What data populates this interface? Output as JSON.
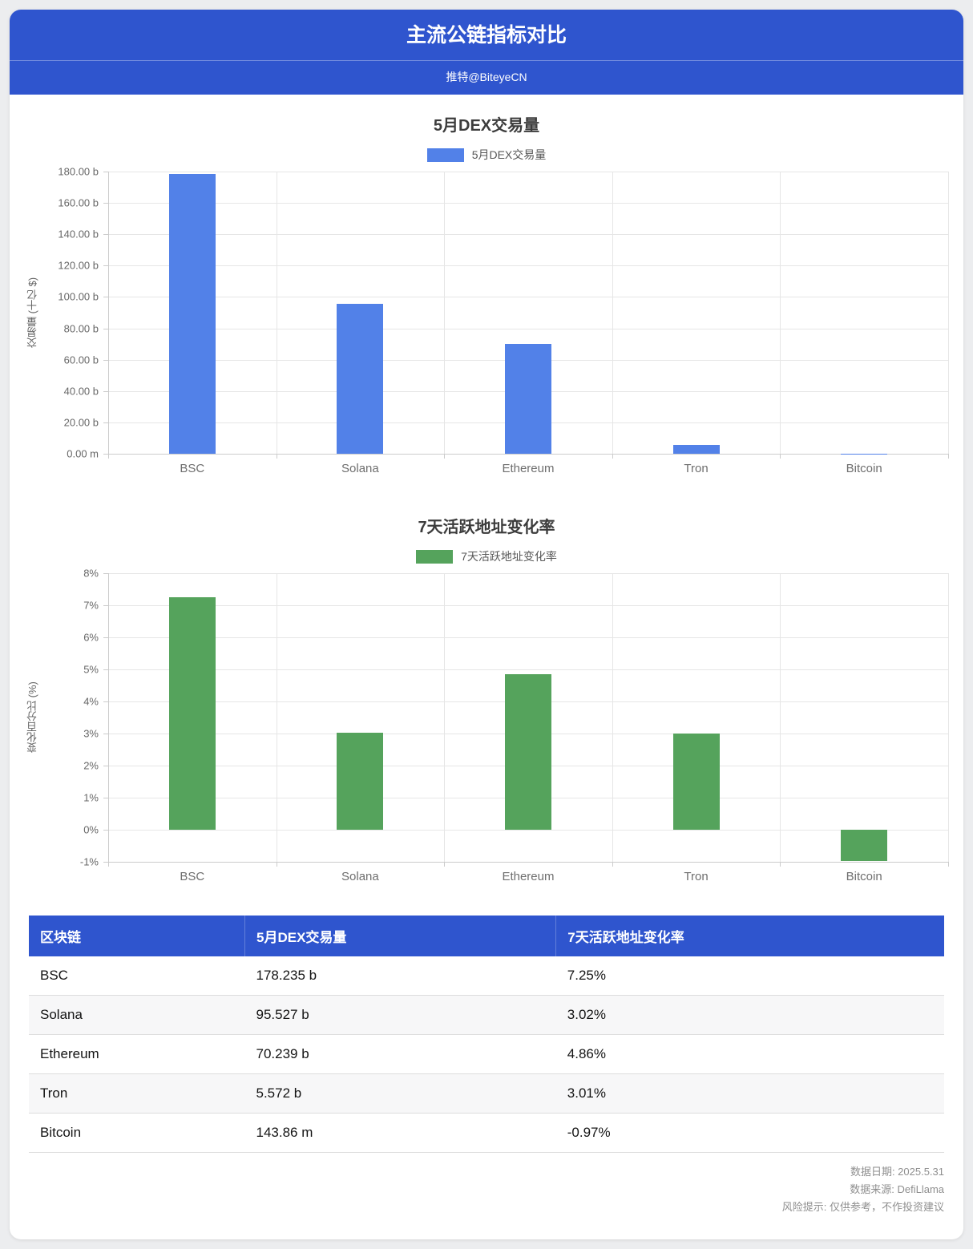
{
  "header": {
    "title": "主流公链指标对比",
    "subtitle": "推特@BiteyeCN",
    "banner_color": "#2F55CE"
  },
  "chart_data": [
    {
      "type": "bar",
      "title": "5月DEX交易量",
      "legend": [
        "5月DEX交易量"
      ],
      "legend_position": "top",
      "xlabel": "",
      "ylabel": "交易量 (十亿 $)",
      "categories": [
        "BSC",
        "Solana",
        "Ethereum",
        "Tron",
        "Bitcoin"
      ],
      "values": [
        178.235,
        95.527,
        70.239,
        5.572,
        0.14386
      ],
      "value_unit": "billion $",
      "ylim": [
        0,
        180
      ],
      "ystep": 20,
      "ytick_labels": [
        "0.00 m",
        "20.00 b",
        "40.00 b",
        "60.00 b",
        "80.00 b",
        "100.00 b",
        "120.00 b",
        "140.00 b",
        "160.00 b",
        "180.00 b"
      ],
      "grid": true,
      "bar_color": "#5281E8"
    },
    {
      "type": "bar",
      "title": "7天活跃地址变化率",
      "legend": [
        "7天活跃地址变化率"
      ],
      "legend_position": "top",
      "xlabel": "",
      "ylabel": "变化百分比 (%)",
      "categories": [
        "BSC",
        "Solana",
        "Ethereum",
        "Tron",
        "Bitcoin"
      ],
      "values": [
        7.25,
        3.02,
        4.86,
        3.01,
        -0.97
      ],
      "value_unit": "%",
      "ylim": [
        -1,
        8
      ],
      "ystep": 1,
      "ytick_labels": [
        "-1%",
        "0%",
        "1%",
        "2%",
        "3%",
        "4%",
        "5%",
        "6%",
        "7%",
        "8%"
      ],
      "grid": true,
      "bar_color": "#55A35C"
    }
  ],
  "table": {
    "headers": [
      "区块链",
      "5月DEX交易量",
      "7天活跃地址变化率"
    ],
    "rows": [
      [
        "BSC",
        "178.235 b",
        "7.25%"
      ],
      [
        "Solana",
        "95.527 b",
        "3.02%"
      ],
      [
        "Ethereum",
        "70.239 b",
        "4.86%"
      ],
      [
        "Tron",
        "5.572 b",
        "3.01%"
      ],
      [
        "Bitcoin",
        "143.86 m",
        "-0.97%"
      ]
    ]
  },
  "footer": {
    "lines": [
      "数据日期: 2025.5.31",
      "数据来源: DefiLlama",
      "风险提示: 仅供参考，不作投资建议"
    ]
  }
}
